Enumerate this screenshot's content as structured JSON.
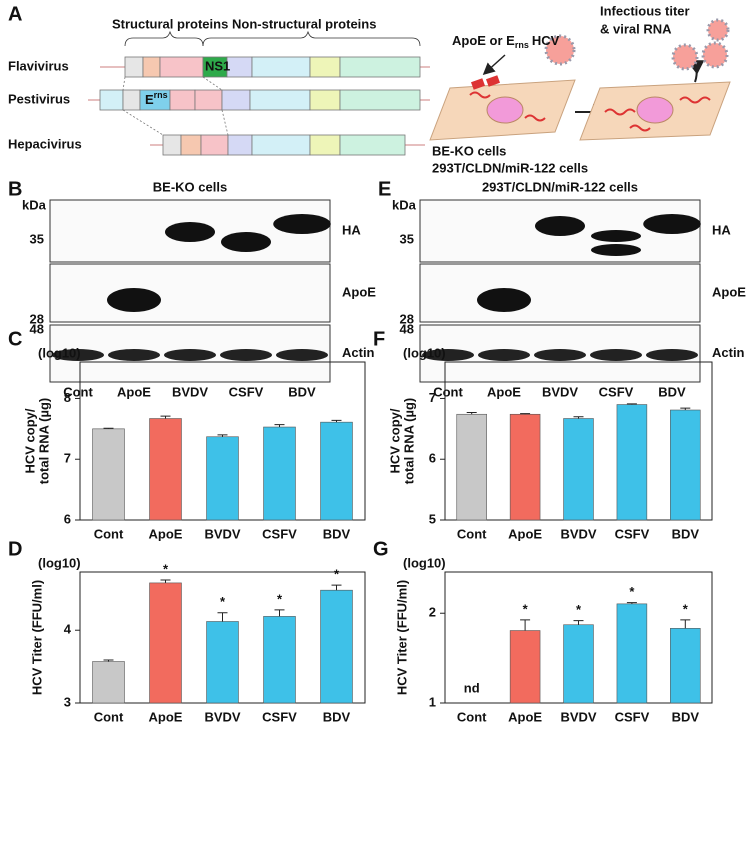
{
  "diagram": {
    "panel": "A",
    "structural": "Structural proteins",
    "nonstructural": "Non-structural proteins",
    "genomes": [
      "Flavivirus",
      "Pestivirus",
      "Hepacivirus"
    ],
    "ns1": "NS1",
    "erns": [
      "E",
      "rns"
    ],
    "apoe_or": [
      "ApoE or E",
      "rns",
      "HCV"
    ],
    "readout": [
      "Infectious titer",
      "& viral RNA"
    ],
    "cells": [
      "BE-KO cells",
      "293T/CLDN/miR-122 cells"
    ]
  },
  "blots": [
    {
      "panel": "B",
      "title": "BE-KO cells",
      "kda": "kDa",
      "markers": [
        35,
        28,
        48
      ],
      "bands": [
        "HA",
        "ApoE",
        "Actin"
      ],
      "lanes": [
        "Cont",
        "ApoE",
        "BVDV",
        "CSFV",
        "BDV"
      ]
    },
    {
      "panel": "E",
      "title": "293T/CLDN/miR-122 cells",
      "kda": "kDa",
      "markers": [
        35,
        28,
        48
      ],
      "bands": [
        "HA",
        "ApoE",
        "Actin"
      ],
      "lanes": [
        "Cont",
        "ApoE",
        "BVDV",
        "CSFV",
        "BDV"
      ]
    }
  ],
  "chart_data": [
    {
      "type": "bar",
      "panel": "C",
      "unit_label": "(log10)",
      "ylabel": [
        "HCV copy/",
        "total RNA (µg)"
      ],
      "categories": [
        "Cont",
        "ApoE",
        "BVDV",
        "CSFV",
        "BDV"
      ],
      "values": [
        7.5,
        7.67,
        7.37,
        7.53,
        7.61
      ],
      "errors": [
        0.01,
        0.04,
        0.03,
        0.04,
        0.03
      ],
      "colors": [
        "#c8c8c8",
        "#f26b5e",
        "#3ec1e8",
        "#3ec1e8",
        "#3ec1e8"
      ],
      "ylim": [
        6,
        8.6
      ],
      "yticks": [
        6,
        7,
        8
      ],
      "log_scale": false
    },
    {
      "type": "bar",
      "panel": "D",
      "unit_label": "(log10)",
      "ylabel": [
        "HCV Titer (FFU/ml)"
      ],
      "categories": [
        "Cont",
        "ApoE",
        "BVDV",
        "CSFV",
        "BDV"
      ],
      "values": [
        3.57,
        4.65,
        4.12,
        4.19,
        4.55
      ],
      "errors": [
        0.02,
        0.04,
        0.12,
        0.09,
        0.07
      ],
      "colors": [
        "#c8c8c8",
        "#f26b5e",
        "#3ec1e8",
        "#3ec1e8",
        "#3ec1e8"
      ],
      "annotations": [
        null,
        "*",
        "*",
        "*",
        "*"
      ],
      "ylim": [
        3,
        4.8
      ],
      "yticks": [
        3,
        4
      ],
      "log_scale": false
    },
    {
      "type": "bar",
      "panel": "F",
      "unit_label": "(log10)",
      "ylabel": [
        "HCV copy/",
        "total RNA (µg)"
      ],
      "categories": [
        "Cont",
        "ApoE",
        "BVDV",
        "CSFV",
        "BDV"
      ],
      "values": [
        6.74,
        6.74,
        6.67,
        6.9,
        6.81
      ],
      "errors": [
        0.03,
        0.01,
        0.03,
        0.01,
        0.03
      ],
      "colors": [
        "#c8c8c8",
        "#f26b5e",
        "#3ec1e8",
        "#3ec1e8",
        "#3ec1e8"
      ],
      "ylim": [
        5,
        7.6
      ],
      "yticks": [
        5,
        6,
        7
      ],
      "log_scale": false
    },
    {
      "type": "bar",
      "panel": "G",
      "unit_label": "(log10)",
      "ylabel": [
        "HCV Titer (FFU/ml)"
      ],
      "categories": [
        "Cont",
        "ApoE",
        "BVDV",
        "CSFV",
        "BDV"
      ],
      "values": [
        null,
        1.75,
        1.83,
        2.15,
        1.78
      ],
      "errors": [
        null,
        0.15,
        0.06,
        0.02,
        0.12
      ],
      "colors": [
        "#c8c8c8",
        "#f26b5e",
        "#3ec1e8",
        "#3ec1e8",
        "#3ec1e8"
      ],
      "annotations": [
        "nd",
        "*",
        "*",
        "*",
        "*"
      ],
      "ylim": [
        1,
        2.75
      ],
      "yticks": [
        1,
        2
      ],
      "log_scale": true
    }
  ]
}
